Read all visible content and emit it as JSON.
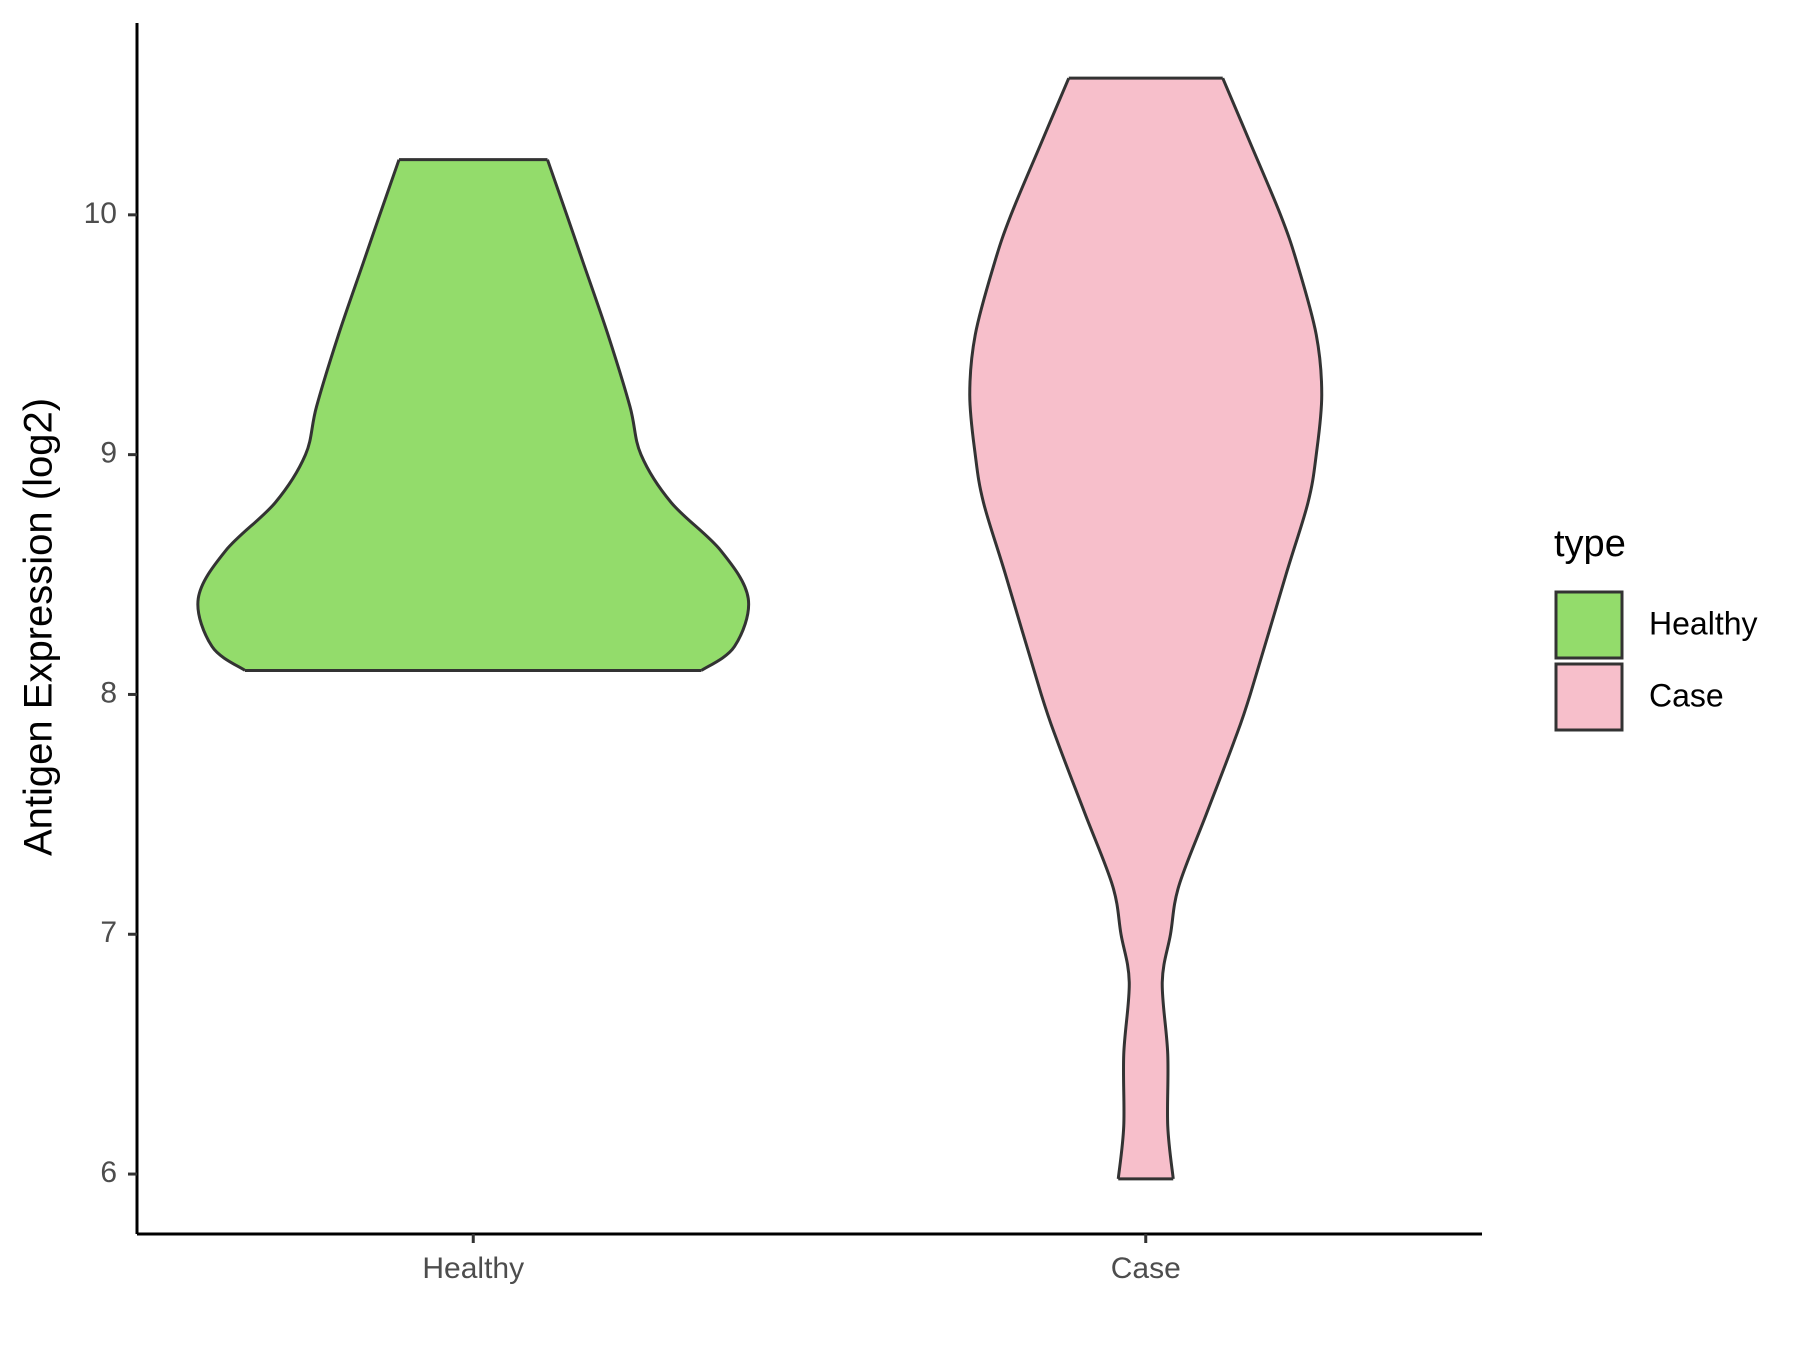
{
  "chart_data": {
    "type": "violin",
    "y_label": "Antigen Expression (log2)",
    "legend_title": "type",
    "categories": [
      "Healthy",
      "Case"
    ],
    "series": [
      {
        "name": "Healthy",
        "color": "#93dc6b",
        "y": [
          8.1,
          8.2,
          8.4,
          8.6,
          8.8,
          9.0,
          9.2,
          9.5,
          9.8,
          10.0,
          10.23
        ],
        "density": [
          0.83,
          0.95,
          1.0,
          0.9,
          0.72,
          0.61,
          0.57,
          0.49,
          0.4,
          0.34,
          0.27
        ]
      },
      {
        "name": "Case",
        "color": "#f7bfcb",
        "y": [
          5.98,
          6.2,
          6.5,
          6.8,
          7.0,
          7.2,
          7.5,
          7.8,
          8.0,
          8.5,
          8.8,
          9.0,
          9.25,
          9.5,
          9.8,
          10.0,
          10.3,
          10.57
        ],
        "density": [
          0.1,
          0.08,
          0.08,
          0.06,
          0.09,
          0.12,
          0.22,
          0.32,
          0.38,
          0.51,
          0.59,
          0.62,
          0.64,
          0.62,
          0.55,
          0.49,
          0.38,
          0.28
        ]
      }
    ],
    "ylim": [
      5.75,
      10.8
    ],
    "yticks": [
      6,
      7,
      8,
      9,
      10
    ]
  }
}
